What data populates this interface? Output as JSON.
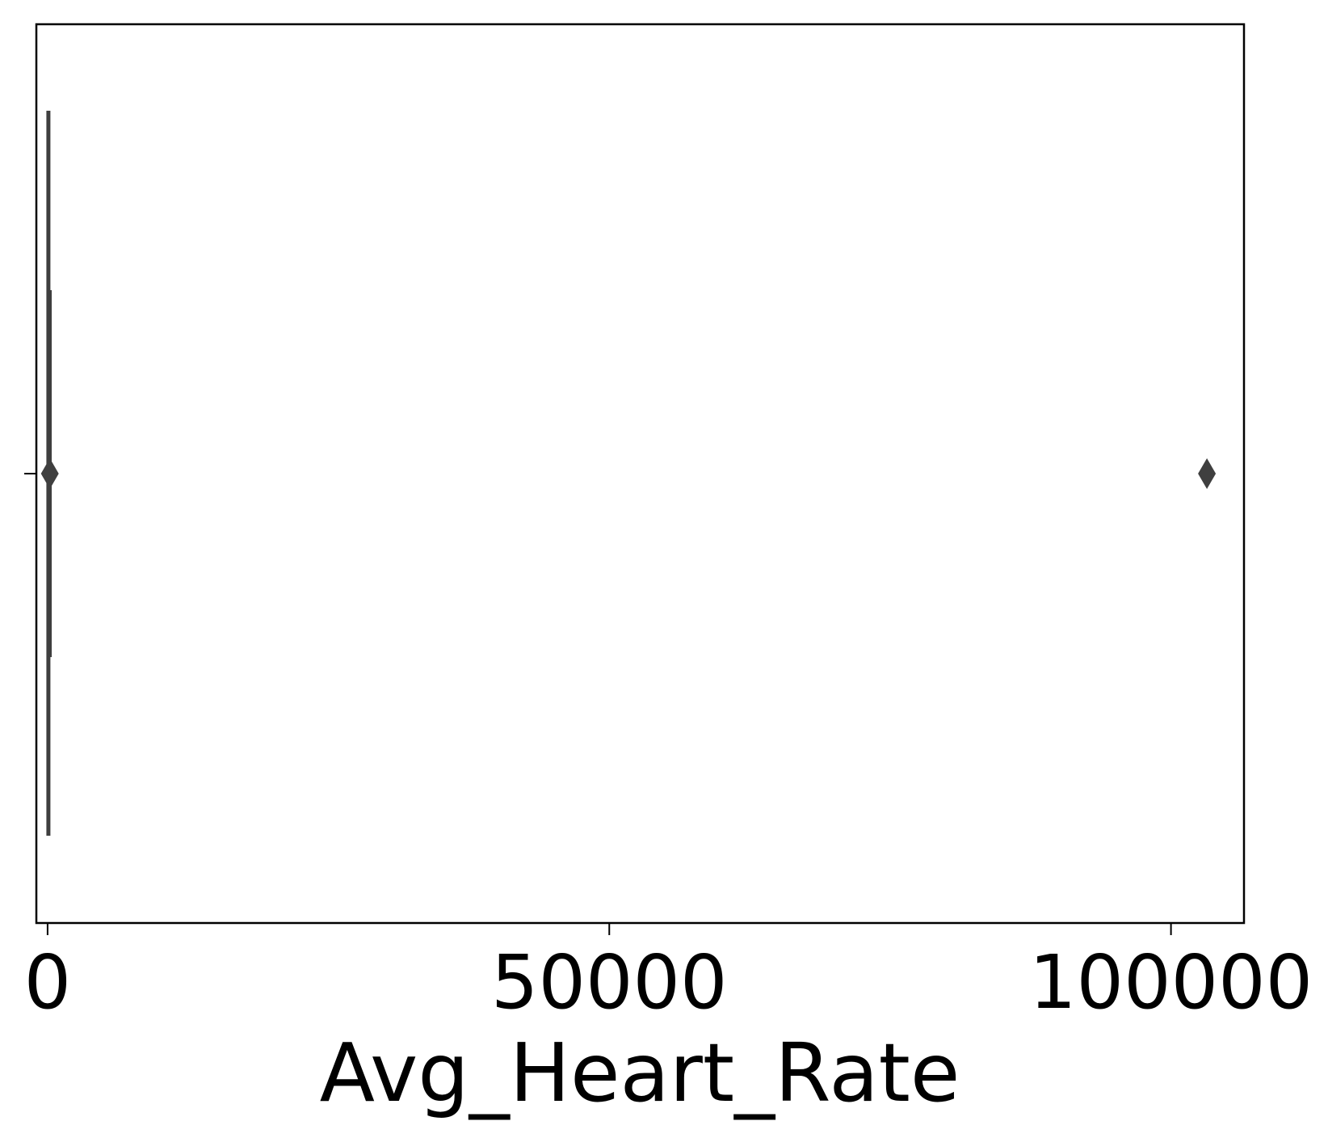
{
  "chart_data": {
    "type": "boxplot",
    "orientation": "horizontal",
    "title": "",
    "xlabel": "Avg_Heart_Rate",
    "ylabel": "",
    "xlim": [
      -1000,
      106500
    ],
    "xticks": [
      0,
      50000,
      100000
    ],
    "xtick_labels": [
      "0",
      "50000",
      "100000"
    ],
    "grid": false,
    "color": "#3f3f3f",
    "box": {
      "whisker_low": 0,
      "q1": 80,
      "median": 110,
      "q3": 160,
      "whisker_high": 250
    },
    "outliers": [
      200,
      103200
    ]
  }
}
